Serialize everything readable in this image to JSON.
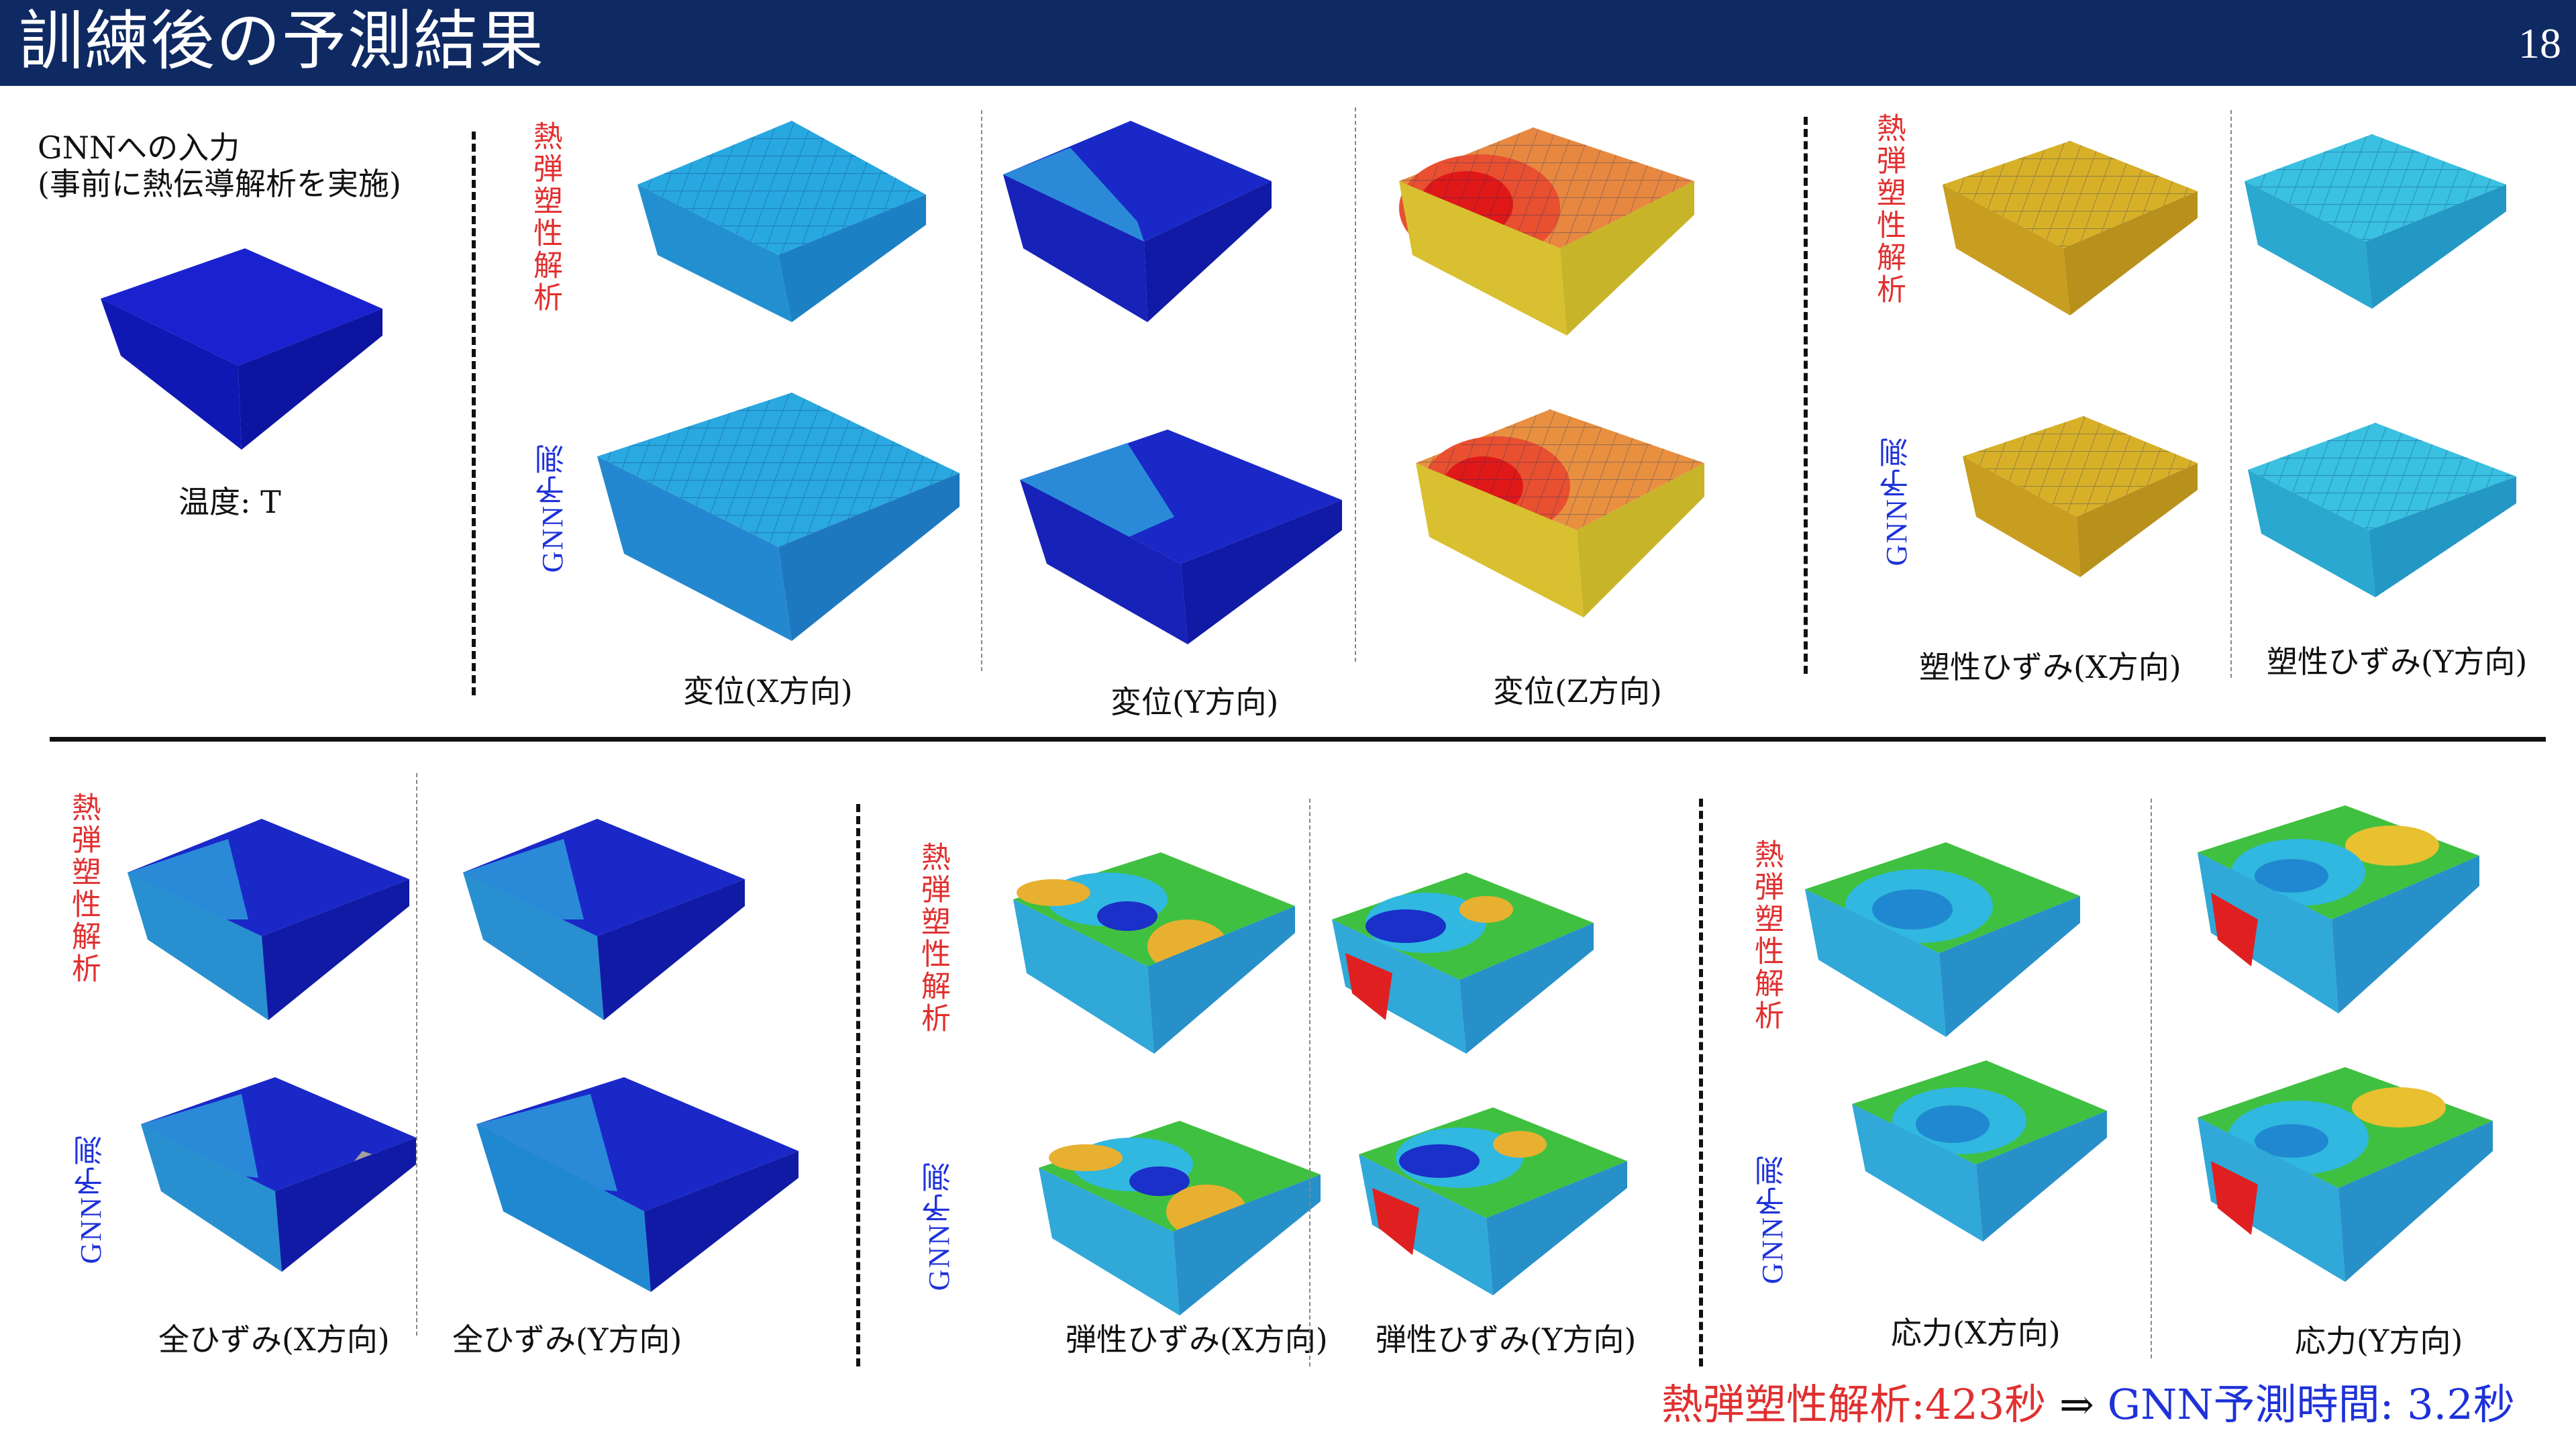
{
  "header": {
    "title": "訓練後の予測結果",
    "page_number": "18"
  },
  "input": {
    "line1": "GNNへの入力",
    "line2": "(事前に熱伝導解析を実施)",
    "temperature_label": "温度: T"
  },
  "row_labels": {
    "fem": "熱弾塑性解析",
    "gnn": "GNN予測"
  },
  "top_labels": {
    "disp_x": "変位(X方向)",
    "disp_y": "変位(Y方向)",
    "disp_z": "変位(Z方向)",
    "plastic_x": "塑性ひずみ(X方向)",
    "plastic_y": "塑性ひずみ(Y方向)"
  },
  "bottom_labels": {
    "total_x": "全ひずみ(X方向)",
    "total_y": "全ひずみ(Y方向)",
    "elastic_x": "弾性ひずみ(X方向)",
    "elastic_y": "弾性ひずみ(Y方向)",
    "stress_x": "応力(X方向)",
    "stress_y": "応力(Y方向)"
  },
  "footer": {
    "fem_time": "熱弾塑性解析:423秒",
    "arrow": " ⇒ ",
    "gnn_time": "GNN予測時間: 3.2秒"
  },
  "colors": {
    "header_bg": "#0f2a63",
    "fem_label": "#e03030",
    "gnn_label": "#1e32d8",
    "contour_blue": "#1020c8",
    "contour_cyan": "#23b8e0",
    "contour_yellow": "#d8b020",
    "contour_red": "#e02020",
    "contour_green": "#30c830"
  }
}
